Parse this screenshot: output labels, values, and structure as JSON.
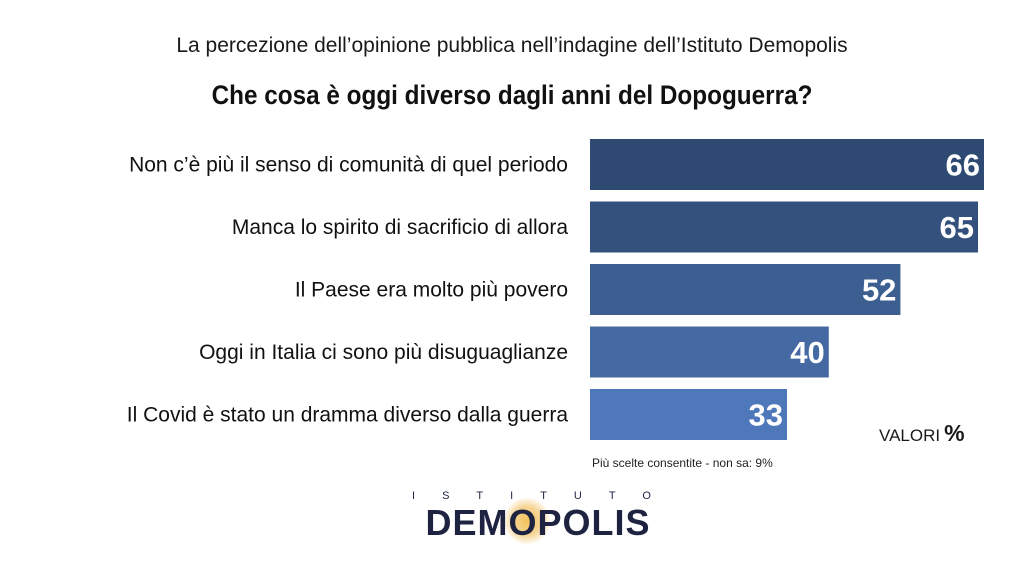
{
  "header": {
    "subtitle": "La percezione dell’opinione pubblica nell’indagine dell’Istituto Demopolis",
    "title": "Che cosa è oggi diverso dagli anni del Dopoguerra?"
  },
  "chart_data": {
    "type": "bar",
    "orientation": "horizontal",
    "categories": [
      "Non c’è più il senso di comunità di quel periodo",
      "Manca lo spirito di sacrificio di allora",
      "Il Paese era molto più povero",
      "Oggi in Italia ci sono più disuguaglianze",
      "Il Covid è stato un dramma diverso dalla guerra"
    ],
    "values": [
      66,
      65,
      52,
      40,
      33
    ],
    "colors": [
      "#2e4a72",
      "#34517e",
      "#3c5e91",
      "#4569a3",
      "#4e78ba"
    ],
    "title": "Che cosa è oggi diverso dagli anni del Dopoguerra?",
    "xlim": [
      0,
      66
    ],
    "data_labels": true,
    "grid": false
  },
  "units": {
    "label": "VALORI",
    "symbol": "%"
  },
  "note": "Più scelte consentite - non sa: 9%",
  "logo": {
    "top": "ISTITUTO",
    "main": "DEMOPOLIS"
  }
}
